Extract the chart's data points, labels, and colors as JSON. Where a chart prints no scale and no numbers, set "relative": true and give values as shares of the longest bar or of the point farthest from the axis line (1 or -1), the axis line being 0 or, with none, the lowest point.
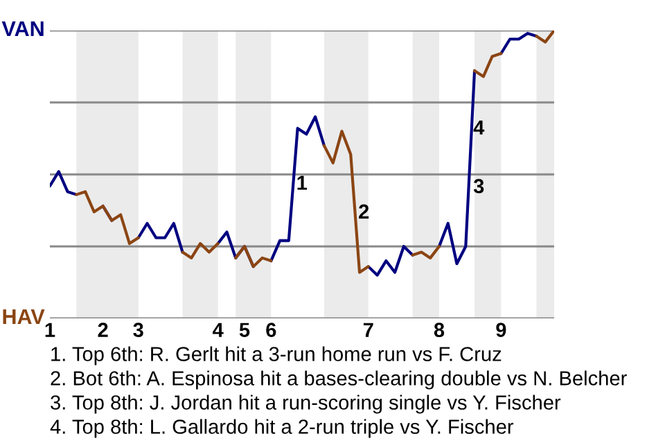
{
  "chart_data": {
    "type": "line",
    "relative": true,
    "categories": [
      "1",
      null,
      null,
      null,
      null,
      null,
      "2",
      null,
      null,
      null,
      "3",
      null,
      null,
      null,
      null,
      null,
      null,
      null,
      null,
      "4",
      null,
      null,
      "5",
      null,
      null,
      "6",
      null,
      null,
      null,
      null,
      null,
      null,
      null,
      null,
      null,
      null,
      "7",
      null,
      null,
      null,
      null,
      null,
      null,
      null,
      "8",
      null,
      null,
      null,
      null,
      null,
      null,
      "9",
      null,
      null,
      null,
      null,
      null,
      null
    ],
    "series": [
      {
        "name": "VAN",
        "color": "#000080",
        "values": [
          0.46,
          0.51,
          0.44,
          0.43,
          null,
          null,
          0.39,
          0.34,
          null,
          null,
          0.28,
          0.33,
          0.28,
          0.28,
          0.33,
          0.23,
          null,
          null,
          null,
          0.26,
          0.3,
          0.21,
          0.25,
          0.18,
          null,
          0.2,
          0.27,
          0.27,
          0.66,
          0.64,
          0.7,
          0.6,
          null,
          null,
          null,
          null,
          0.18,
          0.15,
          0.2,
          0.16,
          0.25,
          0.22,
          null,
          null,
          0.25,
          0.33,
          0.19,
          0.25,
          0.86,
          null,
          null,
          0.92,
          0.97,
          0.97,
          0.99,
          0.98,
          null,
          null
        ]
      },
      {
        "name": "HAV",
        "color": "#8b4513",
        "values": [
          null,
          null,
          null,
          0.43,
          0.44,
          0.37,
          0.39,
          0.34,
          0.36,
          0.26,
          0.28,
          null,
          null,
          null,
          null,
          0.23,
          0.21,
          0.26,
          0.23,
          0.26,
          null,
          0.21,
          0.25,
          0.18,
          0.21,
          0.2,
          null,
          null,
          null,
          null,
          null,
          0.6,
          0.54,
          0.65,
          0.57,
          0.16,
          0.18,
          null,
          null,
          null,
          null,
          0.22,
          0.23,
          0.21,
          0.25,
          null,
          null,
          null,
          0.86,
          0.84,
          0.91,
          0.92,
          null,
          null,
          null,
          0.98,
          0.96,
          1.0
        ]
      }
    ],
    "grid": "y",
    "annotations": [
      "1",
      "2",
      "3",
      "4",
      "1. Top 6th: R. Gerlt hit a 3-run home run vs F. Cruz",
      "2. Bot 6th: A. Espinosa hit a bases-clearing double vs N. Belcher",
      "3. Top 8th: J. Jordan hit a run-scoring single vs Y. Fischer",
      "4. Top 8th: L. Gallardo hit a 2-run triple vs Y. Fischer"
    ]
  }
}
